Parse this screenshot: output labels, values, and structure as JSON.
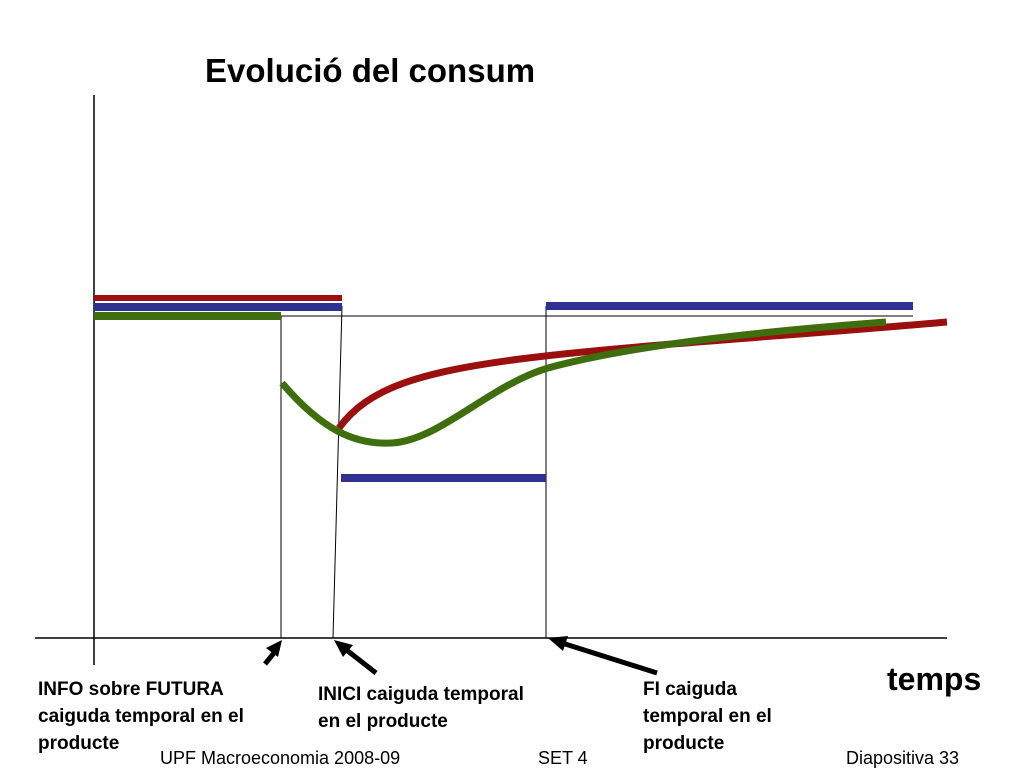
{
  "slide": {
    "title": "Evolució del consum",
    "x_axis_label": "temps",
    "annotations": {
      "info": [
        "INFO sobre FUTURA",
        "caiguda temporal en el",
        "producte"
      ],
      "inici": [
        "INICI caiguda temporal",
        "en el producte"
      ],
      "fi": [
        "FI caiguda",
        "temporal en el",
        "producte"
      ]
    },
    "footer": {
      "left": "UPF Macroeconomia 2008-09",
      "center": "SET 4",
      "right": "Diapositiva 33"
    }
  },
  "colors": {
    "red_series": "#9B0F0F",
    "blue_series": "#2E3192",
    "green_series": "#3F6E0E",
    "axes": "#000000"
  }
}
